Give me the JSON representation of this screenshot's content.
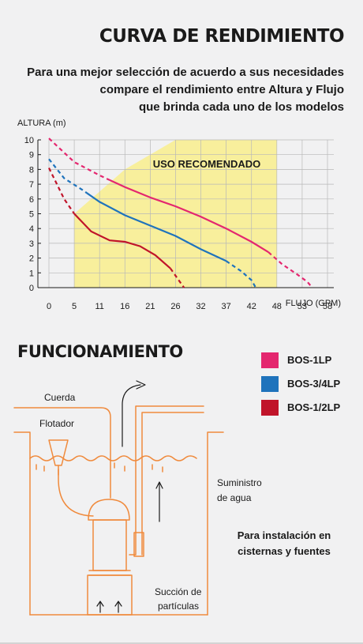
{
  "header": {
    "title": "CURVA DE RENDIMIENTO",
    "subtitle_lines": [
      "Para una mejor selección de acuerdo a sus necesidades",
      "compare el rendimiento entre Altura y Flujo",
      "que brinda cada uno de los modelos"
    ]
  },
  "chart_data": {
    "type": "line",
    "title": "",
    "ylabel": "ALTURA (m)",
    "xlabel": "FLUJO (GPM)",
    "x_ticks": [
      "0",
      "5",
      "11",
      "16",
      "21",
      "26",
      "32",
      "37",
      "42",
      "48",
      "53",
      "58"
    ],
    "y_ticks": [
      "0",
      "1",
      "2",
      "3",
      "4",
      "5",
      "6",
      "7",
      "8",
      "9",
      "10"
    ],
    "ylim": [
      0,
      10
    ],
    "grid": true,
    "recommended_zone": {
      "label": "USO RECOMENDADO",
      "color": "#f8ef9c",
      "polygon": [
        [
          5,
          0
        ],
        [
          5,
          5
        ],
        [
          16,
          8
        ],
        [
          26,
          10
        ],
        [
          48,
          10
        ],
        [
          48,
          0
        ]
      ]
    },
    "series": [
      {
        "name": "BOS-1LP",
        "color": "#e4276f",
        "points": [
          [
            0,
            10.1
          ],
          [
            5,
            8.5
          ],
          [
            11,
            7.6
          ],
          [
            16,
            6.8
          ],
          [
            21,
            6.1
          ],
          [
            26,
            5.5
          ],
          [
            32,
            4.8
          ],
          [
            37,
            4.0
          ],
          [
            42,
            3.1
          ],
          [
            46,
            2.4
          ],
          [
            49,
            1.6
          ],
          [
            52,
            0.9
          ],
          [
            54,
            0.4
          ],
          [
            55,
            0
          ]
        ],
        "solid_range": [
          13,
          46
        ]
      },
      {
        "name": "BOS-3/4LP",
        "color": "#1f73bc",
        "points": [
          [
            0,
            8.7
          ],
          [
            3,
            7.4
          ],
          [
            7,
            6.6
          ],
          [
            11,
            5.8
          ],
          [
            16,
            4.9
          ],
          [
            21,
            4.2
          ],
          [
            26,
            3.5
          ],
          [
            32,
            2.6
          ],
          [
            37,
            1.8
          ],
          [
            40,
            1.1
          ],
          [
            42,
            0.5
          ],
          [
            43,
            0
          ]
        ],
        "solid_range": [
          8,
          37
        ]
      },
      {
        "name": "BOS-1/2LP",
        "color": "#c0142a",
        "points": [
          [
            0,
            8.1
          ],
          [
            3,
            6.0
          ],
          [
            5,
            5.0
          ],
          [
            9,
            3.8
          ],
          [
            13,
            3.2
          ],
          [
            16,
            3.1
          ],
          [
            19,
            2.8
          ],
          [
            22,
            2.2
          ],
          [
            25,
            1.3
          ],
          [
            27,
            0.4
          ],
          [
            28,
            0
          ]
        ],
        "solid_range": [
          5,
          25
        ]
      }
    ]
  },
  "section2": {
    "title": "FUNCIONAMIENTO",
    "labels": {
      "cuerda": "Cuerda",
      "flotador": "Flotador",
      "suministro": [
        "Suministro",
        "de agua"
      ],
      "succion": [
        "Succión de",
        "partículas"
      ]
    },
    "note": [
      "Para instalación en",
      "cisternas y fuentes"
    ],
    "diagram_color": "#f08a3c"
  }
}
